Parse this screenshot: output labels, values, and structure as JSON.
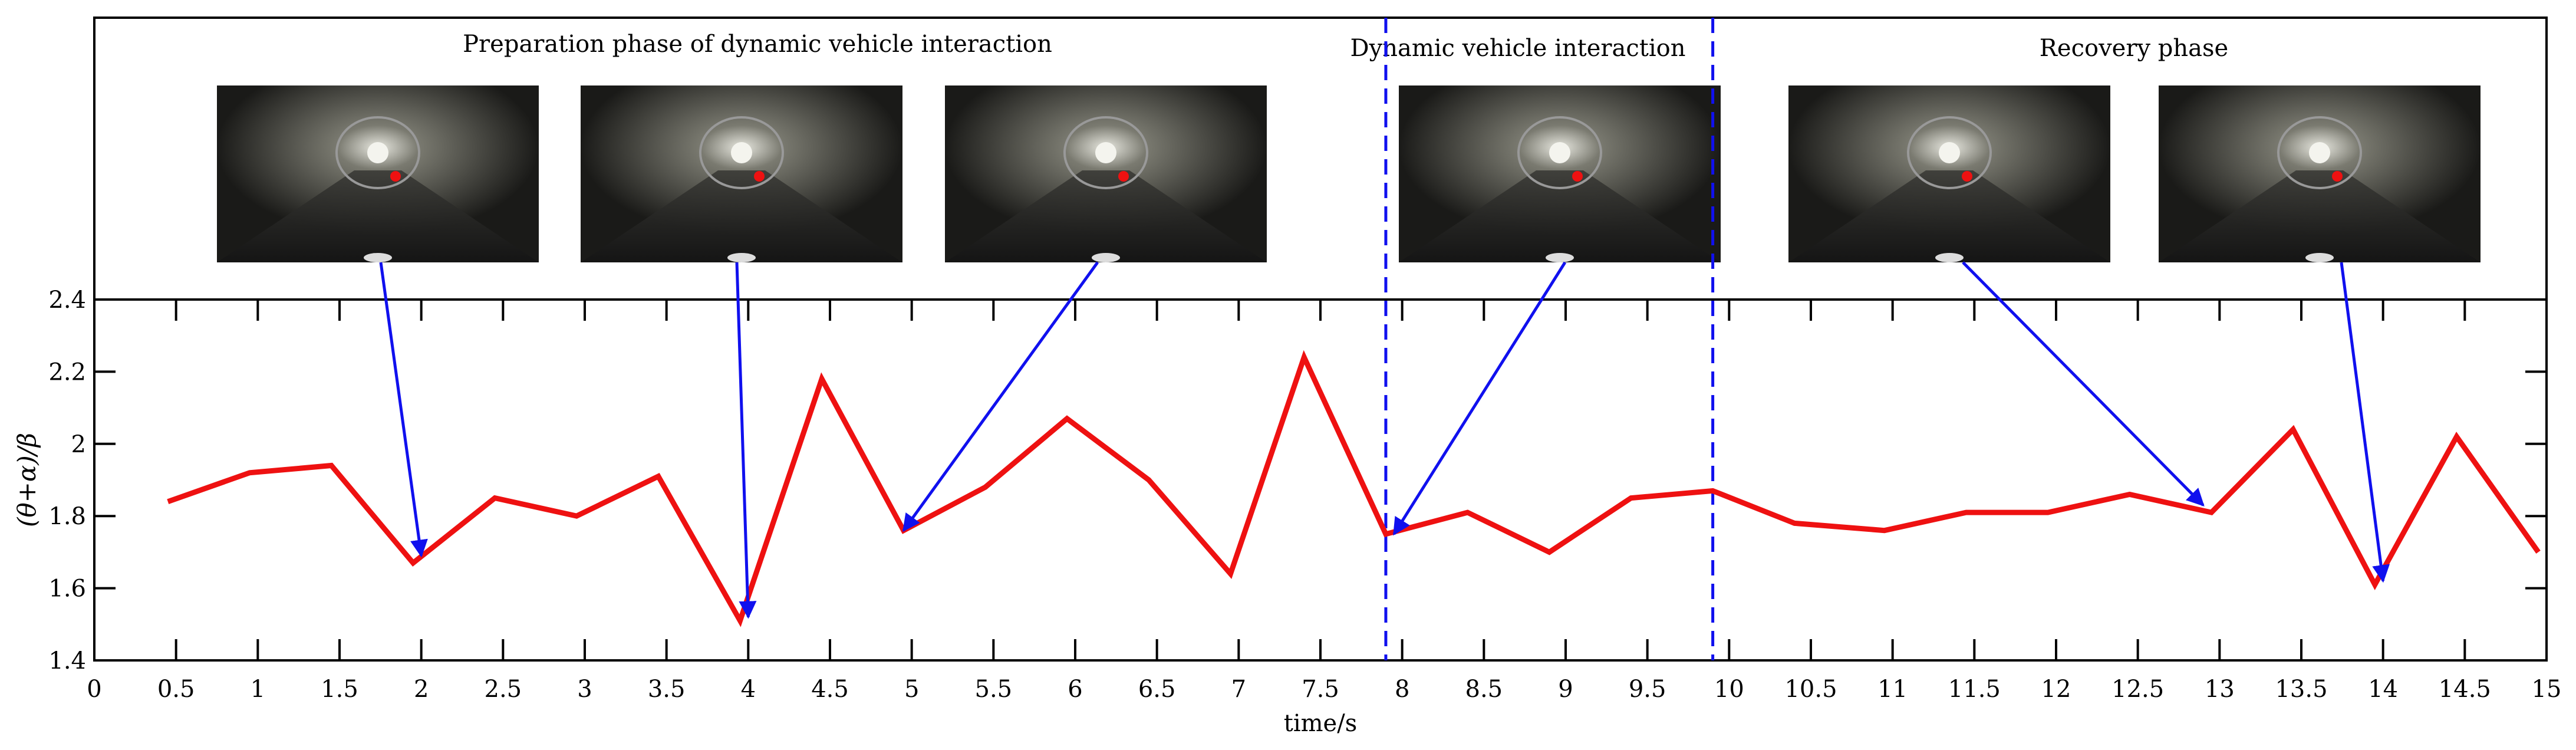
{
  "phases": {
    "preparation": "Preparation phase of dynamic vehicle interaction",
    "interaction": "Dynamic vehicle interaction",
    "recovery": "Recovery phase"
  },
  "images": [
    {
      "name": "tunnel-photo-1",
      "target_x": 2.0,
      "target_y": 1.69
    },
    {
      "name": "tunnel-photo-2",
      "target_x": 4.0,
      "target_y": 1.52
    },
    {
      "name": "tunnel-photo-3",
      "target_x": 4.95,
      "target_y": 1.76
    },
    {
      "name": "tunnel-photo-4",
      "target_x": 7.95,
      "target_y": 1.75
    },
    {
      "name": "tunnel-photo-5",
      "target_x": 12.9,
      "target_y": 1.83
    },
    {
      "name": "tunnel-photo-6",
      "target_x": 14.0,
      "target_y": 1.62
    }
  ],
  "chart_data": {
    "type": "line",
    "xlabel": "time/s",
    "ylabel": "(θ+α)/β",
    "xlim": [
      0,
      15
    ],
    "ylim": [
      1.4,
      2.4
    ],
    "xticks": [
      "0",
      "0.5",
      "1",
      "1.5",
      "2",
      "2.5",
      "3",
      "3.5",
      "4",
      "4.5",
      "5",
      "5.5",
      "6",
      "6.5",
      "7",
      "7.5",
      "8",
      "8.5",
      "9",
      "9.5",
      "10",
      "10.5",
      "11",
      "11.5",
      "12",
      "12.5",
      "13",
      "13.5",
      "14",
      "14.5",
      "15"
    ],
    "yticks": [
      "1.4",
      "1.6",
      "1.8",
      "2",
      "2.2",
      "2.4"
    ],
    "phase_boundaries": [
      7.9,
      9.9
    ],
    "series": [
      {
        "color": "#ee1111",
        "x": [
          0.45,
          0.95,
          1.45,
          1.95,
          2.45,
          2.95,
          3.45,
          3.95,
          4.45,
          4.95,
          5.45,
          5.95,
          6.45,
          6.95,
          7.4,
          7.9,
          8.4,
          8.9,
          9.4,
          9.9,
          10.4,
          10.95,
          11.45,
          11.95,
          12.45,
          12.95,
          13.45,
          13.95,
          14.45,
          14.95
        ],
        "y": [
          1.84,
          1.92,
          1.94,
          1.67,
          1.85,
          1.8,
          1.91,
          1.51,
          2.18,
          1.76,
          1.88,
          2.07,
          1.9,
          1.64,
          2.24,
          1.75,
          1.81,
          1.7,
          1.85,
          1.87,
          1.78,
          1.76,
          1.81,
          1.81,
          1.86,
          1.81,
          2.04,
          1.61,
          2.02,
          1.7
        ]
      }
    ]
  }
}
